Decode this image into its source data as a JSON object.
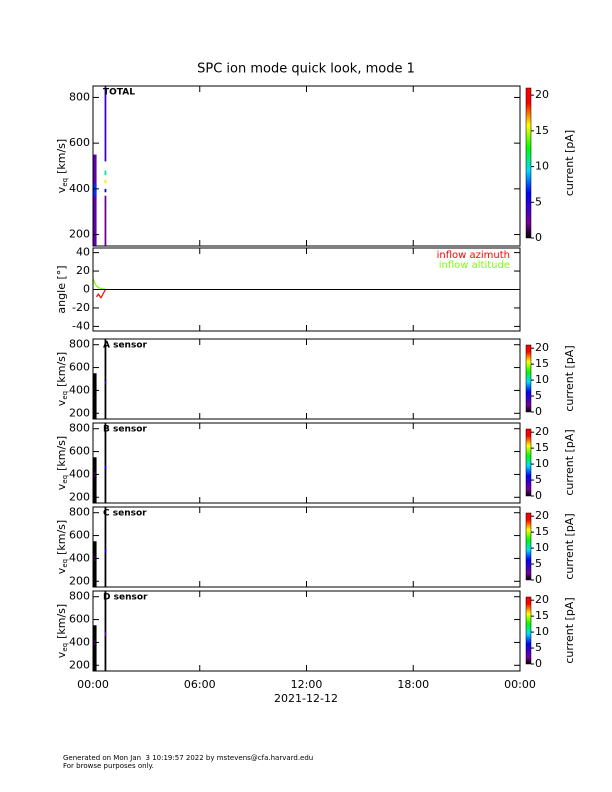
{
  "title": "SPC ion mode quick look, mode 1",
  "x_label": "2021-12-12",
  "xlim": [
    0,
    24
  ],
  "xticks": [
    {
      "value": 0,
      "label": "00:00"
    },
    {
      "value": 6,
      "label": "06:00"
    },
    {
      "value": 12,
      "label": "12:00"
    },
    {
      "value": 18,
      "label": "18:00"
    },
    {
      "value": 24,
      "label": "00:00"
    }
  ],
  "chart_data": [
    {
      "type": "spectrogram",
      "label": "TOTAL",
      "y_label": "v",
      "y_label_sub": "eq",
      "y_label_unit": "[km/s]",
      "ylim": [
        150,
        850
      ],
      "yticks": [
        200,
        400,
        600,
        800
      ],
      "colorbar_label": "current [pA]",
      "clim": [
        0,
        21
      ],
      "cticks": [
        0,
        5,
        10,
        15,
        20
      ],
      "cells": [
        {
          "t0": 0,
          "t1": 0.2,
          "v0": 150,
          "v1": 550,
          "current": 3
        },
        {
          "t0": 0,
          "t1": 0.2,
          "v0": 370,
          "v1": 420,
          "current": 7
        },
        {
          "t0": 0.65,
          "t1": 0.75,
          "v0": 520,
          "v1": 850,
          "current": 4
        },
        {
          "t0": 0.65,
          "t1": 0.75,
          "v0": 460,
          "v1": 480,
          "current": 11
        },
        {
          "t0": 0.65,
          "t1": 0.75,
          "v0": 425,
          "v1": 440,
          "current": 16
        },
        {
          "t0": 0.65,
          "t1": 0.75,
          "v0": 385,
          "v1": 400,
          "current": 6
        },
        {
          "t0": 0.65,
          "t1": 0.75,
          "v0": 150,
          "v1": 370,
          "current": 2
        }
      ]
    },
    {
      "type": "line",
      "y_label": "angle [°]",
      "ylim": [
        -45,
        45
      ],
      "yticks": [
        -40,
        -20,
        0,
        20,
        40
      ],
      "series": [
        {
          "name": "inflow azimuth",
          "color": "#ff0000",
          "x": [
            0.2,
            0.3,
            0.45,
            0.7
          ],
          "values": [
            -8,
            -5,
            -9,
            0
          ]
        },
        {
          "name": "inflow altitude",
          "color": "#7fff00",
          "x": [
            0,
            0.15,
            0.3,
            0.5,
            0.7
          ],
          "values": [
            12,
            5,
            2,
            1,
            0
          ]
        }
      ]
    },
    {
      "type": "spectrogram",
      "label": "A sensor",
      "y_label": "v",
      "y_label_sub": "eq",
      "y_label_unit": "[km/s]",
      "ylim": [
        150,
        850
      ],
      "yticks": [
        200,
        400,
        600,
        800
      ],
      "colorbar_label": "current [pA]",
      "clim": [
        0,
        21
      ],
      "cticks": [
        0,
        5,
        10,
        15,
        20
      ],
      "cells": [
        {
          "t0": 0,
          "t1": 0.2,
          "v0": 150,
          "v1": 550,
          "current": 0
        },
        {
          "t0": 0.65,
          "t1": 0.75,
          "v0": 150,
          "v1": 850,
          "current": 0
        },
        {
          "t0": 0.65,
          "t1": 0.75,
          "v0": 460,
          "v1": 480,
          "current": 4
        }
      ]
    },
    {
      "type": "spectrogram",
      "label": "B sensor",
      "y_label": "v",
      "y_label_sub": "eq",
      "y_label_unit": "[km/s]",
      "ylim": [
        150,
        850
      ],
      "yticks": [
        200,
        400,
        600,
        800
      ],
      "colorbar_label": "current [pA]",
      "clim": [
        0,
        21
      ],
      "cticks": [
        0,
        5,
        10,
        15,
        20
      ],
      "cells": [
        {
          "t0": 0,
          "t1": 0.2,
          "v0": 150,
          "v1": 550,
          "current": 0
        },
        {
          "t0": 0,
          "t1": 0.2,
          "v0": 380,
          "v1": 420,
          "current": 1
        },
        {
          "t0": 0.65,
          "t1": 0.75,
          "v0": 150,
          "v1": 850,
          "current": 0
        },
        {
          "t0": 0.65,
          "t1": 0.75,
          "v0": 450,
          "v1": 480,
          "current": 6
        }
      ]
    },
    {
      "type": "spectrogram",
      "label": "C sensor",
      "y_label": "v",
      "y_label_sub": "eq",
      "y_label_unit": "[km/s]",
      "ylim": [
        150,
        850
      ],
      "yticks": [
        200,
        400,
        600,
        800
      ],
      "colorbar_label": "current [pA]",
      "clim": [
        0,
        21
      ],
      "cticks": [
        0,
        5,
        10,
        15,
        20
      ],
      "cells": [
        {
          "t0": 0,
          "t1": 0.2,
          "v0": 150,
          "v1": 550,
          "current": 0
        },
        {
          "t0": 0,
          "t1": 0.2,
          "v0": 380,
          "v1": 420,
          "current": 1
        },
        {
          "t0": 0.65,
          "t1": 0.75,
          "v0": 150,
          "v1": 850,
          "current": 0
        },
        {
          "t0": 0.65,
          "t1": 0.75,
          "v0": 450,
          "v1": 480,
          "current": 6
        }
      ]
    },
    {
      "type": "spectrogram",
      "label": "D sensor",
      "y_label": "v",
      "y_label_sub": "eq",
      "y_label_unit": "[km/s]",
      "ylim": [
        150,
        850
      ],
      "yticks": [
        200,
        400,
        600,
        800
      ],
      "colorbar_label": "current [pA]",
      "clim": [
        0,
        21
      ],
      "cticks": [
        0,
        5,
        10,
        15,
        20
      ],
      "cells": [
        {
          "t0": 0,
          "t1": 0.2,
          "v0": 150,
          "v1": 550,
          "current": 0
        },
        {
          "t0": 0,
          "t1": 0.2,
          "v0": 380,
          "v1": 420,
          "current": 1
        },
        {
          "t0": 0.65,
          "t1": 0.75,
          "v0": 150,
          "v1": 850,
          "current": 0
        },
        {
          "t0": 0.65,
          "t1": 0.75,
          "v0": 460,
          "v1": 490,
          "current": 3
        }
      ]
    }
  ],
  "footer": [
    "Generated on Mon Jan  3 10:19:57 2022 by mstevens@cfa.harvard.edu",
    "For browse purposes only."
  ]
}
